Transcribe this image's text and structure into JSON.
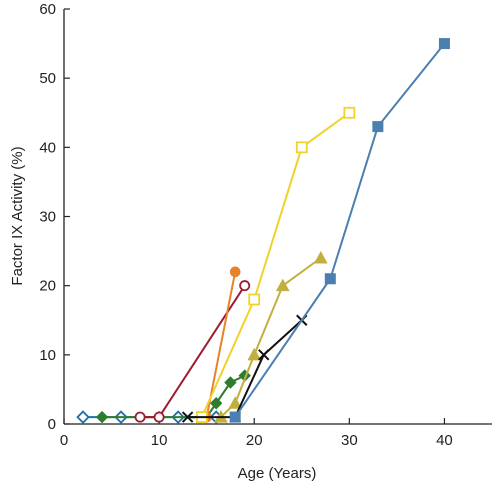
{
  "chart_data": {
    "type": "line",
    "xlabel": "Age (Years)",
    "ylabel": "Factor IX Activity (%)",
    "xlim": [
      0,
      45
    ],
    "ylim": [
      0,
      60
    ],
    "xticks": [
      0,
      10,
      20,
      30,
      40
    ],
    "yticks": [
      0,
      10,
      20,
      30,
      40,
      50,
      60
    ],
    "grid": false,
    "series": [
      {
        "color": "#1e6fa8",
        "marker": "diamond-open",
        "points": [
          [
            2,
            1
          ],
          [
            6,
            1
          ],
          [
            12,
            1
          ],
          [
            16,
            1
          ]
        ]
      },
      {
        "color": "#2e7d2e",
        "marker": "diamond-filled",
        "points": [
          [
            4,
            1
          ],
          [
            10,
            1
          ],
          [
            15,
            1
          ],
          [
            16,
            3
          ],
          [
            17.5,
            6
          ],
          [
            19,
            7
          ]
        ]
      },
      {
        "color": "#9e1b32",
        "marker": "circle-open",
        "points": [
          [
            8,
            1
          ],
          [
            10,
            1
          ],
          [
            19,
            20
          ]
        ]
      },
      {
        "color": "#e8822a",
        "marker": "circle-filled",
        "points": [
          [
            15,
            1
          ],
          [
            18,
            22
          ]
        ]
      },
      {
        "color": "#f0d22a",
        "marker": "square-open",
        "points": [
          [
            14.5,
            1
          ],
          [
            20,
            18
          ],
          [
            25,
            40
          ],
          [
            30,
            45
          ]
        ]
      },
      {
        "color": "#c2b03e",
        "marker": "triangle-filled",
        "points": [
          [
            16.5,
            1
          ],
          [
            18,
            3
          ],
          [
            20,
            10
          ],
          [
            23,
            20
          ],
          [
            27,
            24
          ]
        ]
      },
      {
        "color": "#111111",
        "marker": "x",
        "points": [
          [
            13,
            1
          ],
          [
            18,
            1
          ],
          [
            21,
            10
          ],
          [
            25,
            15
          ]
        ]
      },
      {
        "color": "#4a7fb0",
        "marker": "square-filled",
        "points": [
          [
            18,
            1
          ],
          [
            28,
            21
          ],
          [
            33,
            43
          ],
          [
            40,
            55
          ]
        ]
      }
    ]
  }
}
